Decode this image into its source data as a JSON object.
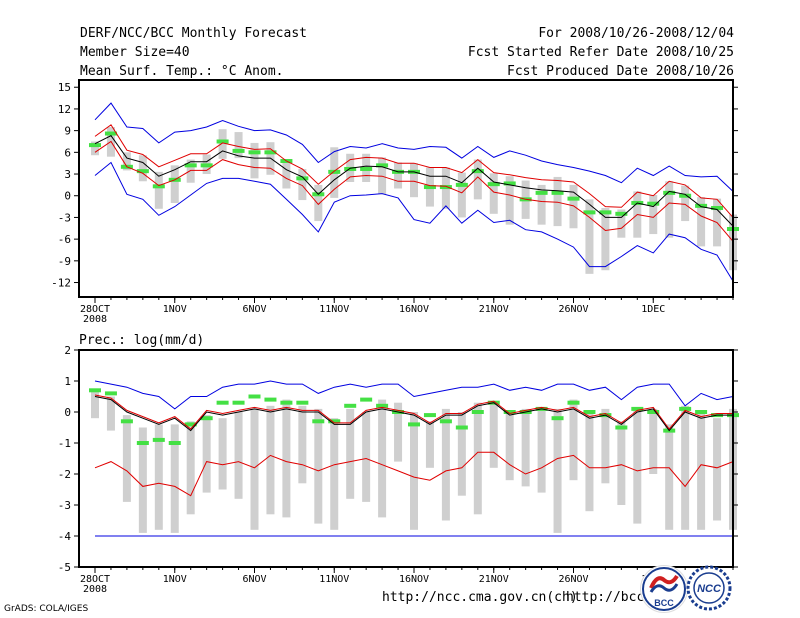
{
  "header": {
    "title": "DERF/NCC/BCC Monthly Forecast",
    "member_size": "Member Size=40",
    "variable1": "Mean Surf. Temp.: °C Anom.",
    "forecast_range": "For 2008/10/26-2008/12/04",
    "started_date": "Fcst Started Refer Date 2008/10/25",
    "produced_date": "Fcst Produced Date 2008/10/26"
  },
  "footer": {
    "url1": "http://ncc.cma.gov.cn(ch)",
    "url2": "http://bcc.",
    "grads": "GrADS: COLA/IGES",
    "logo1_text": "BCC",
    "logo2_text": "NCC"
  },
  "colors": {
    "box": "#cfcfcf",
    "member": "#44e044",
    "mean": "#000000",
    "spread": "#e00000",
    "extreme": "#0000e0"
  },
  "chart_data": [
    {
      "type": "line",
      "title": "Mean Surf. Temp.: °C Anom.",
      "ylim": [
        -14,
        16
      ],
      "yticks": [
        15,
        12,
        9,
        6,
        3,
        0,
        -3,
        -6,
        -9,
        -12
      ],
      "x_ticks": [
        {
          "day": 0,
          "label": "28OCT",
          "sub": "2008"
        },
        {
          "day": 5,
          "label": "1NOV"
        },
        {
          "day": 10,
          "label": "6NOV"
        },
        {
          "day": 15,
          "label": "11NOV"
        },
        {
          "day": 20,
          "label": "16NOV"
        },
        {
          "day": 25,
          "label": "21NOV"
        },
        {
          "day": 30,
          "label": "26NOV"
        },
        {
          "day": 35,
          "label": "1DEC"
        }
      ],
      "x_start_day": 0,
      "mean": [
        7.2,
        8.3,
        5.2,
        4.6,
        2.7,
        3.6,
        4.7,
        4.7,
        6.2,
        5.5,
        5.2,
        5.2,
        3.6,
        2.6,
        0.2,
        2.2,
        3.8,
        4.1,
        4.0,
        3.3,
        3.3,
        2.7,
        2.7,
        1.8,
        3.8,
        1.9,
        1.5,
        1.1,
        0.8,
        0.7,
        0.5,
        -1.2,
        -3.0,
        -3.0,
        -1.0,
        -1.5,
        0.6,
        0.2,
        -1.5,
        -1.9,
        -4.2
      ],
      "spread_upper": [
        8.2,
        9.8,
        6.3,
        5.7,
        4.0,
        4.9,
        5.8,
        5.8,
        7.3,
        6.8,
        6.4,
        6.5,
        4.8,
        3.7,
        1.6,
        3.4,
        5.0,
        5.3,
        5.2,
        4.5,
        4.5,
        3.9,
        3.9,
        3.2,
        5.0,
        3.2,
        2.9,
        2.5,
        2.2,
        2.1,
        1.9,
        0.3,
        -1.5,
        -1.6,
        0.5,
        0.0,
        2.0,
        1.5,
        -0.3,
        -0.5,
        -3.0
      ],
      "spread_lower": [
        6.0,
        7.5,
        4.0,
        3.1,
        1.4,
        2.2,
        3.5,
        3.5,
        5.0,
        4.3,
        3.9,
        3.8,
        2.4,
        1.4,
        -1.2,
        0.9,
        2.6,
        2.8,
        2.7,
        2.0,
        2.0,
        1.4,
        1.3,
        0.4,
        2.6,
        0.5,
        0.1,
        -0.5,
        -0.8,
        -0.9,
        -1.4,
        -3.0,
        -4.8,
        -4.5,
        -2.6,
        -3.0,
        -1.0,
        -1.2,
        -2.8,
        -3.7,
        -6.3
      ],
      "max": [
        10.5,
        12.8,
        9.5,
        9.3,
        7.3,
        8.8,
        9.0,
        9.5,
        10.4,
        9.6,
        9.0,
        9.1,
        8.4,
        7.1,
        4.6,
        6.1,
        6.8,
        6.6,
        7.2,
        6.6,
        6.4,
        6.8,
        6.7,
        5.2,
        6.8,
        5.3,
        6.2,
        5.6,
        4.8,
        4.3,
        3.9,
        3.4,
        2.8,
        1.8,
        3.8,
        2.8,
        4.1,
        2.8,
        2.6,
        2.7,
        0.6
      ],
      "min": [
        2.8,
        4.6,
        0.2,
        -0.5,
        -2.7,
        -1.5,
        0.1,
        1.7,
        2.4,
        2.4,
        2.0,
        1.6,
        -0.5,
        -2.6,
        -5.0,
        -0.9,
        0.0,
        0.1,
        0.3,
        -0.3,
        -3.3,
        -3.8,
        -1.4,
        -3.8,
        -2.0,
        -3.7,
        -3.4,
        -4.7,
        -5.0,
        -6.0,
        -7.1,
        -9.8,
        -9.8,
        -8.4,
        -6.9,
        -7.9,
        -5.3,
        -5.8,
        -7.4,
        -8.2,
        -11.8
      ],
      "box_top": [
        7.5,
        9.5,
        6.0,
        5.6,
        3.3,
        4.2,
        5.0,
        5.7,
        9.2,
        8.8,
        7.3,
        7.4,
        4.7,
        3.7,
        1.5,
        6.7,
        5.8,
        5.8,
        5.3,
        4.6,
        4.5,
        3.9,
        3.9,
        3.2,
        5.0,
        3.1,
        2.7,
        2.1,
        1.5,
        2.6,
        1.5,
        -0.5,
        -1.7,
        -1.9,
        0.6,
        0.1,
        2.0,
        1.4,
        -0.2,
        -0.4,
        -2.6
      ],
      "box_bottom": [
        5.6,
        5.4,
        3.5,
        2.0,
        -1.8,
        -1.0,
        1.8,
        3.0,
        5.1,
        5.2,
        2.4,
        2.9,
        1.0,
        -0.6,
        -3.5,
        -0.3,
        1.9,
        1.9,
        0.2,
        1.0,
        -0.2,
        -1.5,
        -1.8,
        -3.0,
        -0.5,
        -2.5,
        -4.0,
        -3.2,
        -4.0,
        -4.2,
        -4.5,
        -10.8,
        -10.3,
        -5.8,
        -5.8,
        -5.3,
        -5.8,
        -3.5,
        -7.0,
        -7.0,
        -10.3
      ],
      "member_marks": [
        7.0,
        8.6,
        4.0,
        3.4,
        1.3,
        2.2,
        4.2,
        4.2,
        7.5,
        6.2,
        6.0,
        6.0,
        4.8,
        2.4,
        0.2,
        3.3,
        3.7,
        3.7,
        4.2,
        3.3,
        3.3,
        1.2,
        1.2,
        1.5,
        3.4,
        1.6,
        1.7,
        -0.5,
        0.4,
        0.4,
        -0.4,
        -2.3,
        -2.3,
        -2.5,
        -1.0,
        -1.1,
        0.4,
        0.0,
        -1.4,
        -1.7,
        -4.6
      ]
    },
    {
      "type": "line",
      "title": "Prec.: log(mm/d)",
      "ylim": [
        -5,
        2
      ],
      "yticks": [
        2,
        1,
        0,
        -1,
        -2,
        -3,
        -4,
        -5
      ],
      "x_ticks": [
        {
          "day": 0,
          "label": "28OCT",
          "sub": "2008"
        },
        {
          "day": 5,
          "label": "1NOV"
        },
        {
          "day": 10,
          "label": "6NOV"
        },
        {
          "day": 15,
          "label": "11NOV"
        },
        {
          "day": 20,
          "label": "16NOV"
        },
        {
          "day": 25,
          "label": "21NOV"
        },
        {
          "day": 30,
          "label": "26NOV"
        },
        {
          "day": 35,
          "label": "1DEC"
        }
      ],
      "x_start_day": 0,
      "mean": [
        0.5,
        0.4,
        0.0,
        -0.2,
        -0.4,
        -0.2,
        -0.6,
        0.0,
        -0.1,
        0.0,
        0.1,
        0.0,
        0.1,
        0.0,
        0.0,
        -0.4,
        -0.4,
        0.0,
        0.1,
        0.0,
        -0.1,
        -0.4,
        -0.1,
        -0.1,
        0.2,
        0.3,
        -0.1,
        0.0,
        0.1,
        0.0,
        0.1,
        -0.2,
        -0.1,
        -0.4,
        0.0,
        0.1,
        -0.6,
        0.0,
        -0.2,
        -0.1,
        -0.1
      ],
      "spread_upper": [
        0.55,
        0.45,
        0.05,
        -0.15,
        -0.35,
        -0.15,
        -0.55,
        0.05,
        -0.05,
        0.05,
        0.15,
        0.05,
        0.15,
        0.05,
        0.05,
        -0.35,
        -0.35,
        0.05,
        0.15,
        0.05,
        -0.05,
        -0.35,
        -0.05,
        -0.05,
        0.25,
        0.35,
        -0.05,
        0.05,
        0.15,
        0.05,
        0.15,
        -0.15,
        -0.05,
        -0.35,
        0.05,
        0.15,
        -0.55,
        0.05,
        -0.15,
        -0.05,
        -0.05
      ],
      "spread_lower": [
        -1.8,
        -1.6,
        -1.9,
        -2.4,
        -2.3,
        -2.4,
        -2.7,
        -1.6,
        -1.7,
        -1.6,
        -1.8,
        -1.4,
        -1.6,
        -1.7,
        -1.9,
        -1.7,
        -1.6,
        -1.5,
        -1.7,
        -1.9,
        -2.1,
        -2.2,
        -1.9,
        -1.8,
        -1.3,
        -1.3,
        -1.7,
        -2.0,
        -1.8,
        -1.5,
        -1.4,
        -1.8,
        -1.8,
        -1.7,
        -1.9,
        -1.8,
        -1.8,
        -2.4,
        -1.7,
        -1.8,
        -1.6
      ],
      "max": [
        1.0,
        0.9,
        0.8,
        0.6,
        0.5,
        0.1,
        0.5,
        0.5,
        0.8,
        0.9,
        0.9,
        1.0,
        0.9,
        0.9,
        0.6,
        0.8,
        0.9,
        0.8,
        0.9,
        0.9,
        0.5,
        0.6,
        0.7,
        0.8,
        0.8,
        0.9,
        0.7,
        0.8,
        0.7,
        0.9,
        0.9,
        0.7,
        0.8,
        0.4,
        0.8,
        0.9,
        0.9,
        0.2,
        0.6,
        0.4,
        0.5
      ],
      "min": [
        -4,
        -4,
        -4,
        -4,
        -4,
        -4,
        -4,
        -4,
        -4,
        -4,
        -4,
        -4,
        -4,
        -4,
        -4,
        -4,
        -4,
        -4,
        -4,
        -4,
        -4,
        -4,
        -4,
        -4,
        -4,
        -4,
        -4,
        -4,
        -4,
        -4,
        -4,
        -4,
        -4,
        -4,
        -4,
        -4,
        -4,
        -4,
        -4,
        -4,
        -4
      ],
      "box_top": [
        0.7,
        0.5,
        -0.1,
        -0.5,
        -0.4,
        -0.4,
        -0.3,
        -0.1,
        -0.2,
        0.0,
        0.1,
        0.2,
        0.4,
        0.2,
        0.1,
        -0.2,
        0.1,
        0.0,
        0.4,
        0.3,
        0.0,
        -0.3,
        0.1,
        0.0,
        0.3,
        0.3,
        0.0,
        0.1,
        0.1,
        0.1,
        0.4,
        0.0,
        0.1,
        -0.3,
        0.1,
        0.1,
        -0.4,
        0.2,
        0.0,
        -0.2,
        0.1
      ],
      "box_bottom": [
        -0.2,
        -0.6,
        -2.9,
        -3.9,
        -3.8,
        -3.9,
        -3.3,
        -2.6,
        -2.5,
        -2.8,
        -3.8,
        -3.3,
        -3.4,
        -2.3,
        -3.6,
        -3.8,
        -2.8,
        -2.9,
        -3.4,
        -1.6,
        -3.8,
        -1.8,
        -3.5,
        -2.7,
        -3.3,
        -1.8,
        -2.2,
        -2.4,
        -2.6,
        -3.9,
        -2.2,
        -3.2,
        -2.3,
        -3.0,
        -3.6,
        -2.0,
        -3.8,
        -3.8,
        -3.8,
        -3.5,
        -3.8
      ],
      "member_marks": [
        0.7,
        0.6,
        -0.3,
        -1.0,
        -0.9,
        -1.0,
        -0.4,
        -0.2,
        0.3,
        0.3,
        0.5,
        0.4,
        0.3,
        0.3,
        -0.3,
        -0.3,
        0.2,
        0.4,
        0.2,
        0.0,
        -0.4,
        -0.1,
        -0.3,
        -0.5,
        0.0,
        0.3,
        0.0,
        0.0,
        0.1,
        -0.2,
        0.3,
        0.0,
        -0.1,
        -0.5,
        0.1,
        0.0,
        -0.6,
        0.1,
        0.0,
        -0.1,
        -0.1
      ]
    }
  ]
}
